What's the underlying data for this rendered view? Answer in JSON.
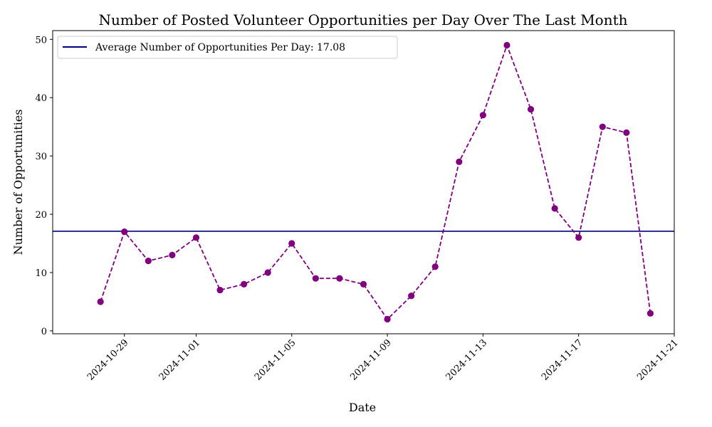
{
  "chart_data": {
    "type": "line",
    "title": "Number of Posted Volunteer Opportunities per Day Over The Last Month",
    "xlabel": "Date",
    "ylabel": "Number of Opportunities",
    "x_range": [
      "2024-10-26",
      "2024-11-21"
    ],
    "ylim": [
      -0.5,
      51.5
    ],
    "grid": false,
    "legend_placement": "top-left",
    "x_ticks": [
      "2024-10-29",
      "2024-11-01",
      "2024-11-05",
      "2024-11-09",
      "2024-11-13",
      "2024-11-17",
      "2024-11-21"
    ],
    "y_ticks": [
      0,
      10,
      20,
      30,
      40,
      50
    ],
    "series": [
      {
        "color": "#800080",
        "line_style": "dashed",
        "marker": "circle",
        "x": [
          "2024-10-28",
          "2024-10-29",
          "2024-10-30",
          "2024-10-31",
          "2024-11-01",
          "2024-11-02",
          "2024-11-03",
          "2024-11-04",
          "2024-11-05",
          "2024-11-06",
          "2024-11-07",
          "2024-11-08",
          "2024-11-09",
          "2024-11-10",
          "2024-11-11",
          "2024-11-12",
          "2024-11-13",
          "2024-11-14",
          "2024-11-15",
          "2024-11-16",
          "2024-11-17",
          "2024-11-18",
          "2024-11-19",
          "2024-11-20"
        ],
        "values": [
          5,
          17,
          12,
          13,
          16,
          7,
          8,
          10,
          15,
          9,
          9,
          8,
          2,
          6,
          11,
          29,
          37,
          49,
          38,
          21,
          16,
          35,
          34,
          3
        ]
      }
    ],
    "reference_line": {
      "name": "Average Number of Opportunities Per Day: 17.08",
      "value": 17.08,
      "color": "#000080"
    }
  }
}
